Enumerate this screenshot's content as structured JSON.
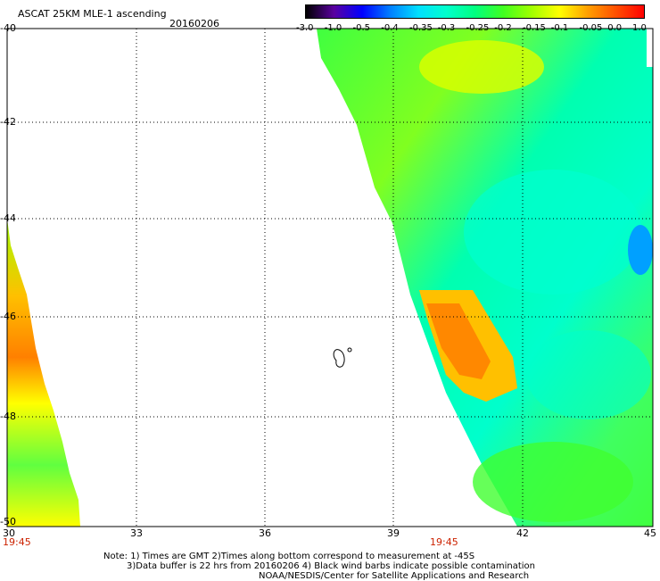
{
  "header": {
    "title": "ASCAT 25KM MLE-1 ascending",
    "date": "20160206"
  },
  "colorbar": {
    "labels": [
      "-3.0",
      "-1.0",
      "-0.5",
      "-0.4",
      "-0.35",
      "-0.3",
      "-0.25",
      "-0.2",
      "-0.15",
      "-0.1",
      "-0.05",
      "0.0",
      "1.0"
    ],
    "colors": [
      "#000000",
      "#5a00a0",
      "#0000ff",
      "#0080ff",
      "#00e0ff",
      "#00ffcc",
      "#00ff80",
      "#40ff20",
      "#a0ff00",
      "#ffff00",
      "#ffa000",
      "#ff5000",
      "#ff0000"
    ]
  },
  "axes": {
    "lon_labels": [
      "30",
      "33",
      "36",
      "39",
      "42",
      "45"
    ],
    "lat_labels": [
      "-40",
      "-42",
      "-44",
      "-46",
      "-48",
      "-50"
    ],
    "lon_range": [
      30,
      45
    ],
    "lat_range": [
      -40,
      -50
    ],
    "grid": "dotted"
  },
  "times": [
    "19:45",
    "19:45"
  ],
  "notes": {
    "line1": "Note: 1) Times are GMT 2)Times along bottom correspond to measurement at -45S",
    "line2": "3)Data buffer is 22 hrs from 20160206 4) Black wind barbs indicate possible contamination",
    "line3": "NOAA/NESDIS/Center for Satellite Applications and Research"
  }
}
